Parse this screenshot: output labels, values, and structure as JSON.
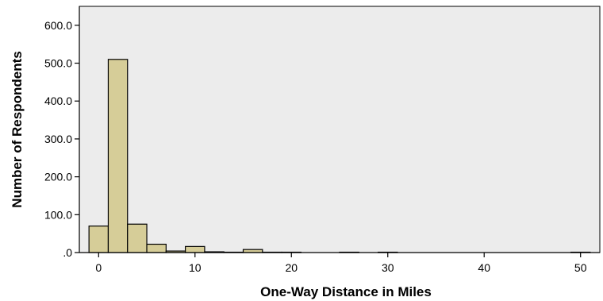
{
  "chart_data": {
    "type": "bar",
    "title": "",
    "xlabel": "One-Way Distance in Miles",
    "ylabel": "Number of Respondents",
    "xlim": [
      -2,
      52
    ],
    "ylim": [
      0,
      650
    ],
    "x_ticks": [
      0,
      10,
      20,
      30,
      40,
      50
    ],
    "x_tick_labels": [
      "0",
      "10",
      "20",
      "30",
      "40",
      "50"
    ],
    "y_ticks": [
      0,
      100,
      200,
      300,
      400,
      500,
      600
    ],
    "y_tick_labels": [
      ".0",
      "100.0",
      "200.0",
      "300.0",
      "400.0",
      "500.0",
      "600.0"
    ],
    "bin_width": 2,
    "bins": [
      {
        "x0": -1,
        "x1": 1,
        "value": 70
      },
      {
        "x0": 1,
        "x1": 3,
        "value": 510
      },
      {
        "x0": 3,
        "x1": 5,
        "value": 75
      },
      {
        "x0": 5,
        "x1": 7,
        "value": 22
      },
      {
        "x0": 7,
        "x1": 9,
        "value": 4
      },
      {
        "x0": 9,
        "x1": 11,
        "value": 16
      },
      {
        "x0": 11,
        "x1": 13,
        "value": 2
      },
      {
        "x0": 13,
        "x1": 15,
        "value": 1
      },
      {
        "x0": 15,
        "x1": 17,
        "value": 8
      },
      {
        "x0": 17,
        "x1": 19,
        "value": 1
      },
      {
        "x0": 19,
        "x1": 21,
        "value": 1
      },
      {
        "x0": 25,
        "x1": 27,
        "value": 1
      },
      {
        "x0": 29,
        "x1": 31,
        "value": 1
      },
      {
        "x0": 49,
        "x1": 51,
        "value": 1
      }
    ],
    "grid": false,
    "colors": {
      "bar_fill": "#d6cd98",
      "bar_stroke": "#000000",
      "plot_background": "#ececec",
      "axis": "#000000"
    }
  }
}
